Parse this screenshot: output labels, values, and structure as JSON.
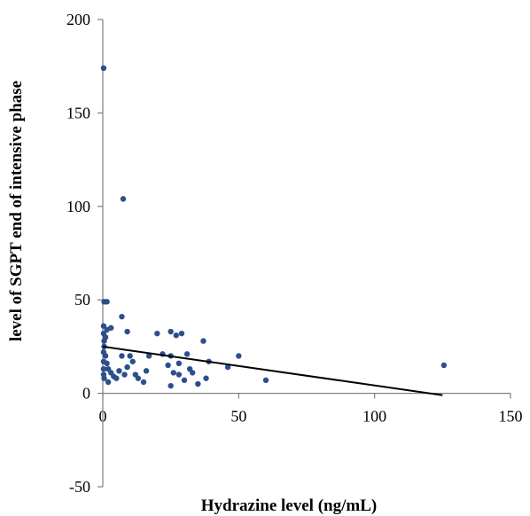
{
  "chart_data": {
    "type": "scatter",
    "title": "",
    "xlabel": "Hydrazine  level (ng/mL)",
    "ylabel": "level of SGPT end of intensive phase",
    "xlim": [
      0,
      150
    ],
    "ylim": [
      -50,
      200
    ],
    "xticks": [
      0,
      50,
      100,
      150
    ],
    "yticks": [
      -50,
      0,
      50,
      100,
      150,
      200
    ],
    "xtick_labels": [
      "0",
      "50",
      "100",
      "150"
    ],
    "ytick_labels": [
      "-50",
      "0",
      "50",
      "100",
      "150",
      "200"
    ],
    "grid": false,
    "legend": "none",
    "point_color": "#2c4f8c",
    "series": [
      {
        "points": [
          [
            0.3,
            174
          ],
          [
            7.5,
            104
          ],
          [
            0.5,
            49
          ],
          [
            1.5,
            49
          ],
          [
            0.3,
            36
          ],
          [
            1.5,
            34
          ],
          [
            3,
            35
          ],
          [
            0.3,
            32
          ],
          [
            1,
            30
          ],
          [
            0.5,
            28
          ],
          [
            0.5,
            25
          ],
          [
            0.3,
            22
          ],
          [
            1,
            20
          ],
          [
            0.3,
            17
          ],
          [
            1.5,
            16
          ],
          [
            0.3,
            13
          ],
          [
            2,
            13
          ],
          [
            0.3,
            10
          ],
          [
            0.5,
            8
          ],
          [
            7,
            41
          ],
          [
            9,
            33
          ],
          [
            7,
            20
          ],
          [
            10,
            20
          ],
          [
            9,
            14
          ],
          [
            6,
            12
          ],
          [
            8,
            10
          ],
          [
            4,
            9
          ],
          [
            5,
            8
          ],
          [
            3,
            11
          ],
          [
            2,
            6
          ],
          [
            11,
            17
          ],
          [
            12,
            10
          ],
          [
            13,
            8
          ],
          [
            15,
            6
          ],
          [
            16,
            12
          ],
          [
            17,
            20
          ],
          [
            20,
            32
          ],
          [
            22,
            21
          ],
          [
            24,
            15
          ],
          [
            25,
            33
          ],
          [
            27,
            31
          ],
          [
            25,
            20
          ],
          [
            26,
            11
          ],
          [
            28,
            16
          ],
          [
            29,
            32
          ],
          [
            31,
            21
          ],
          [
            30,
            7
          ],
          [
            33,
            11
          ],
          [
            32,
            13
          ],
          [
            25,
            4
          ],
          [
            28,
            10
          ],
          [
            35,
            5
          ],
          [
            37,
            28
          ],
          [
            39,
            17
          ],
          [
            38,
            8
          ],
          [
            46,
            14
          ],
          [
            50,
            20
          ],
          [
            60,
            7
          ],
          [
            125.5,
            15
          ]
        ]
      }
    ],
    "trendline": {
      "x": [
        0,
        125
      ],
      "y": [
        25,
        -1
      ]
    }
  }
}
